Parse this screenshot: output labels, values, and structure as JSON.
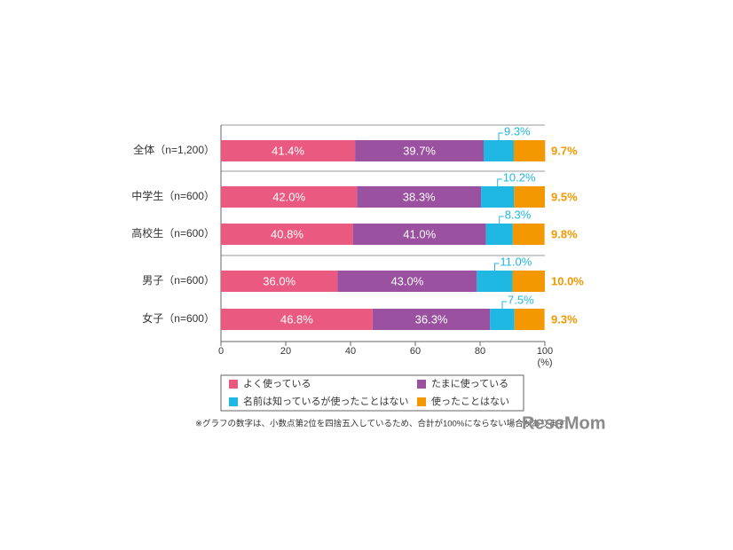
{
  "chart_data": {
    "type": "stacked-bar-horizontal",
    "categories": [
      "全体（n=1,200）",
      "中学生（n=600）",
      "高校生（n=600）",
      "男子（n=600）",
      "女子（n=600）"
    ],
    "series": [
      {
        "name": "よく使っている",
        "color": "#ea5a80",
        "values": [
          41.4,
          42.0,
          40.8,
          36.0,
          46.8
        ],
        "value_labels": [
          "41.4%",
          "42.0%",
          "40.8%",
          "36.0%",
          "46.8%"
        ]
      },
      {
        "name": "たまに使っている",
        "color": "#9a51a0",
        "values": [
          39.7,
          38.3,
          41.0,
          43.0,
          36.3
        ],
        "value_labels": [
          "39.7%",
          "38.3%",
          "41.0%",
          "43.0%",
          "36.3%"
        ]
      },
      {
        "name": "名前は知っているが使ったことはない",
        "color": "#1fb8e3",
        "values": [
          9.3,
          10.2,
          8.3,
          11.0,
          7.5
        ],
        "value_labels": [
          "9.3%",
          "10.2%",
          "8.3%",
          "11.0%",
          "7.5%"
        ]
      },
      {
        "name": "使ったことはない",
        "color": "#f39800",
        "values": [
          9.7,
          9.5,
          9.8,
          10.0,
          9.3
        ],
        "value_labels": [
          "9.7%",
          "9.5%",
          "9.8%",
          "10.0%",
          "9.3%"
        ]
      }
    ],
    "xlim": [
      0,
      100
    ],
    "xticks": [
      0,
      20,
      40,
      60,
      80,
      100
    ],
    "x_unit": "(%)",
    "footnote": "※グラフの数字は、小数点第2位を四捨五入しているため、合計が100%にならない場合があります",
    "logo": "ReseMom"
  }
}
